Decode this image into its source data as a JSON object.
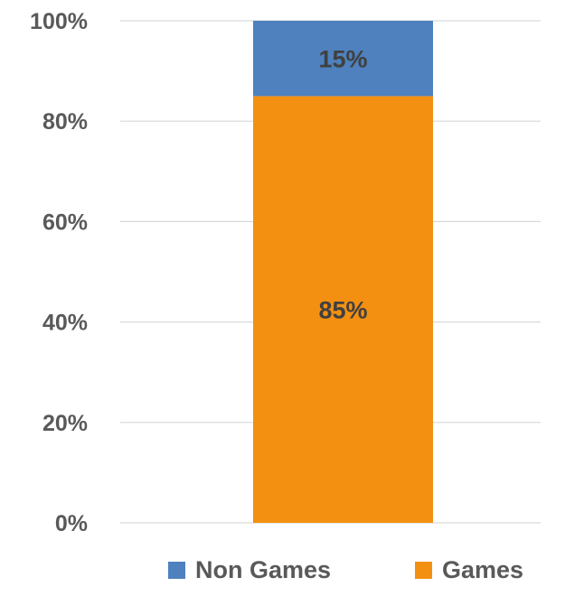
{
  "chart_data": {
    "type": "bar",
    "stacked": true,
    "percent_stacked": true,
    "categories": [
      ""
    ],
    "series": [
      {
        "name": "Games",
        "values": [
          85
        ],
        "color": "#F39012",
        "data_label": "85%"
      },
      {
        "name": "Non Games",
        "values": [
          15
        ],
        "color": "#4E81BE",
        "data_label": "15%"
      }
    ],
    "ylim": [
      0,
      100
    ],
    "yticks": [
      0,
      20,
      40,
      60,
      80,
      100
    ],
    "ytick_labels": [
      "0%",
      "20%",
      "40%",
      "60%",
      "80%",
      "100%"
    ],
    "grid": true,
    "legend": {
      "placement": "bottom",
      "entries": [
        "Non Games",
        "Games"
      ]
    }
  }
}
